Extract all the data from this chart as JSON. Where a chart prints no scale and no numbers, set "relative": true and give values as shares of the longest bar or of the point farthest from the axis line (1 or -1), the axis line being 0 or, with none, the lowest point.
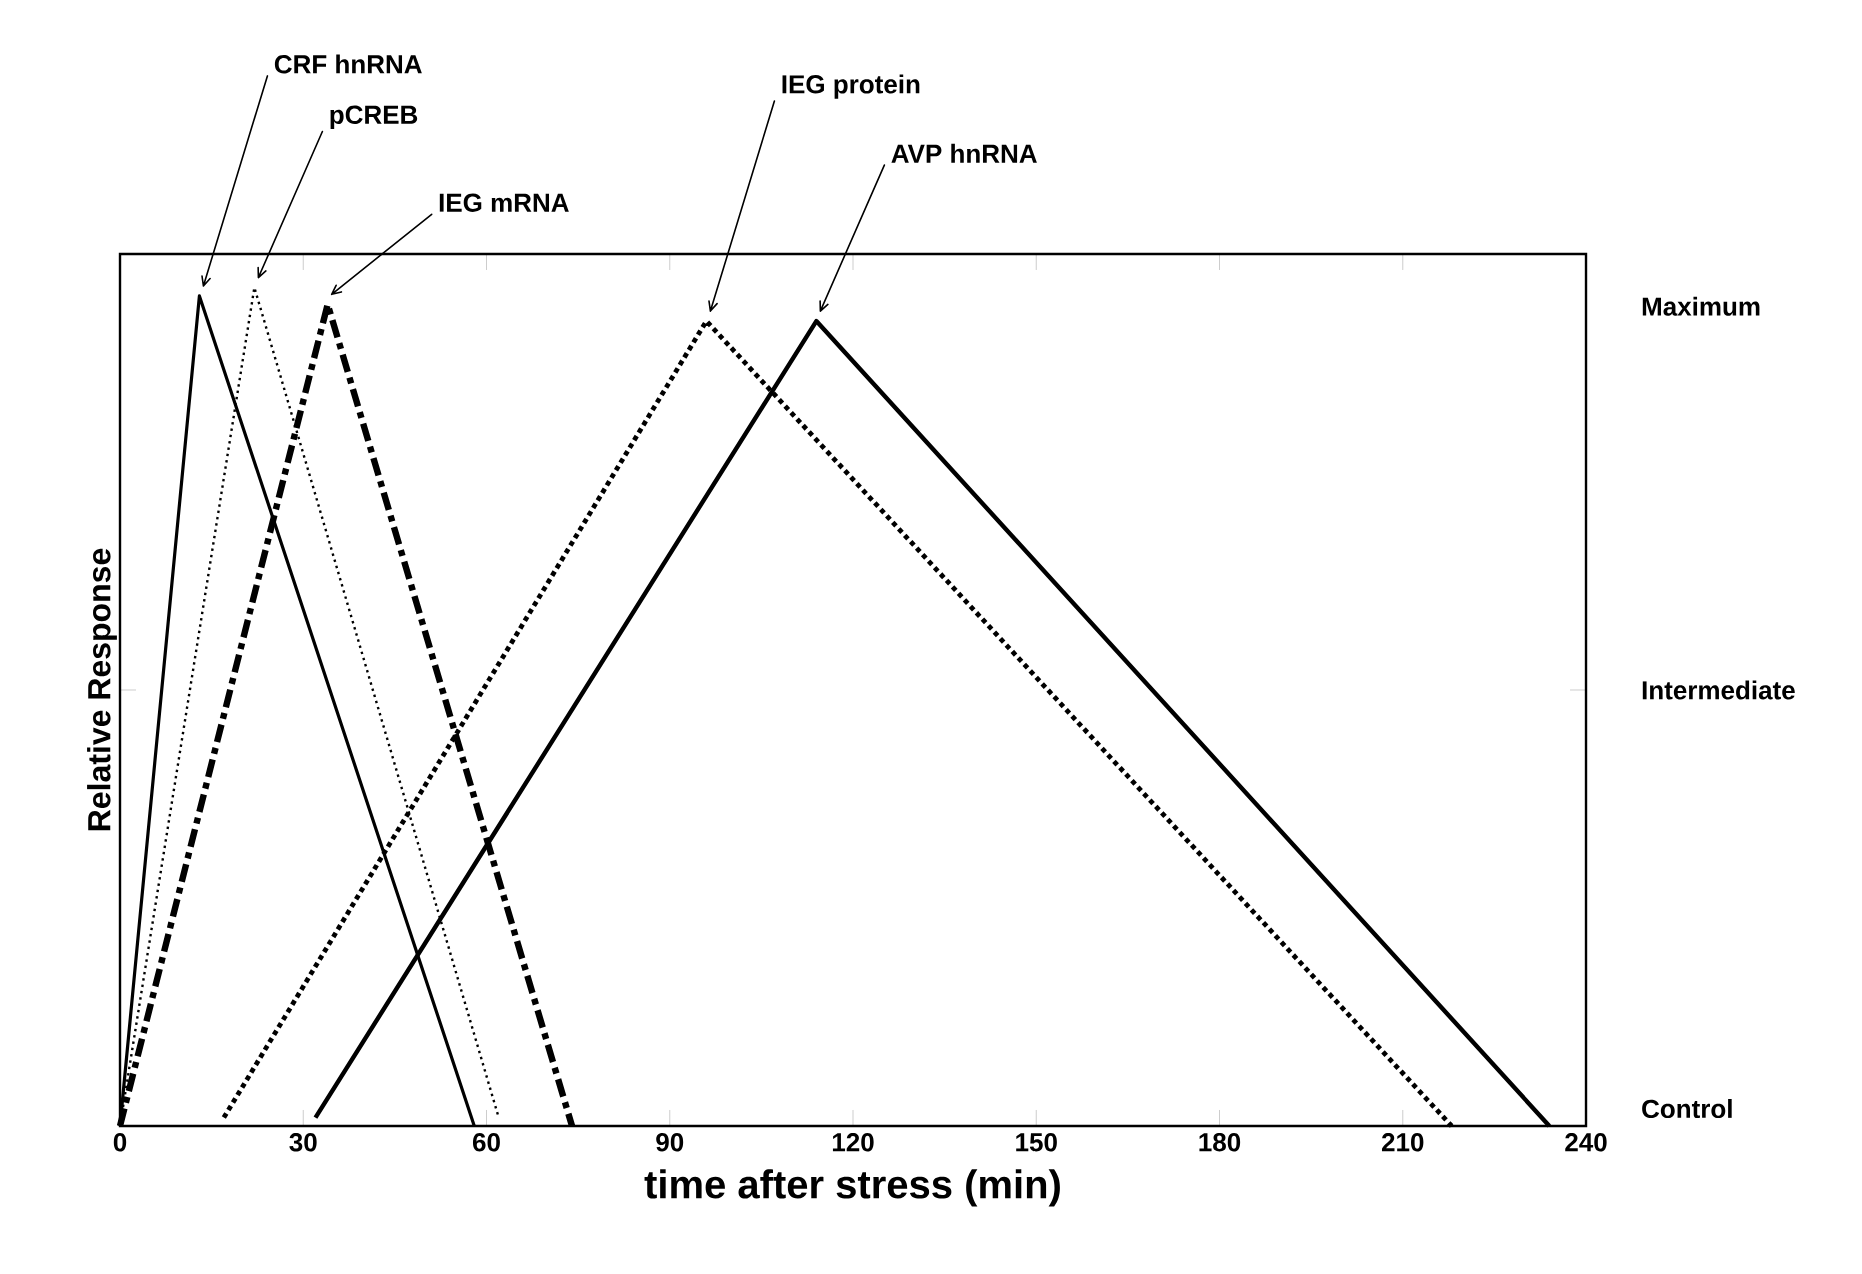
{
  "chart_data": {
    "type": "line",
    "xlabel": "time after stress (min)",
    "ylabel": "Relative Response",
    "xlim": [
      0,
      240
    ],
    "xticks": [
      0,
      30,
      60,
      90,
      120,
      150,
      180,
      210,
      240
    ],
    "relative": true,
    "annotations": [
      "Maximum",
      "Intermediate",
      "Control"
    ],
    "grid": false,
    "marker": "none",
    "series": [
      {
        "name": "CRF hnRNA",
        "color": "#000000",
        "line_style": "solid",
        "x": [
          0,
          13,
          58
        ],
        "values": [
          0,
          0.99,
          0
        ]
      },
      {
        "name": "pCREB",
        "color": "#000000",
        "line_style": "dotted",
        "x": [
          0,
          22,
          62
        ],
        "values": [
          0,
          1,
          0.01
        ]
      },
      {
        "name": "IEG mRNA",
        "color": "#000000",
        "line_style": "dashdot",
        "x": [
          0,
          34,
          74
        ],
        "values": [
          0,
          0.98,
          0
        ]
      },
      {
        "name": "IEG protein",
        "color": "#000000",
        "line_style": "dotted",
        "x": [
          17,
          96,
          218
        ],
        "values": [
          0.01,
          0.96,
          0
        ]
      },
      {
        "name": "AVP hnRNA",
        "color": "#000000",
        "line_style": "solid",
        "x": [
          32,
          114,
          234
        ],
        "values": [
          0.01,
          0.96,
          0
        ]
      }
    ]
  }
}
